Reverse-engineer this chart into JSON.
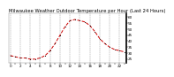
{
  "title": "Milwaukee Weather Outdoor Temperature per Hour (Last 24 Hours)",
  "hours": [
    0,
    1,
    2,
    3,
    4,
    5,
    6,
    7,
    8,
    9,
    10,
    11,
    12,
    13,
    14,
    15,
    16,
    17,
    18,
    19,
    20,
    21,
    22,
    23
  ],
  "temperatures": [
    28,
    27,
    26,
    26,
    25,
    25,
    26,
    28,
    32,
    38,
    45,
    52,
    57,
    58,
    57,
    56,
    53,
    48,
    42,
    38,
    35,
    33,
    32,
    31
  ],
  "line_color": "#cc0000",
  "marker_color": "#000000",
  "background_color": "#ffffff",
  "grid_color": "#888888",
  "ylim": [
    22,
    63
  ],
  "ytick_values": [
    60,
    55,
    50,
    45,
    40,
    35,
    30,
    25
  ],
  "ytick_labels": [
    "60",
    "55",
    "50",
    "45",
    "40",
    "35",
    "30",
    "25"
  ],
  "title_fontsize": 3.8,
  "tick_fontsize": 3.0,
  "line_width": 0.7,
  "marker_size": 1.5
}
